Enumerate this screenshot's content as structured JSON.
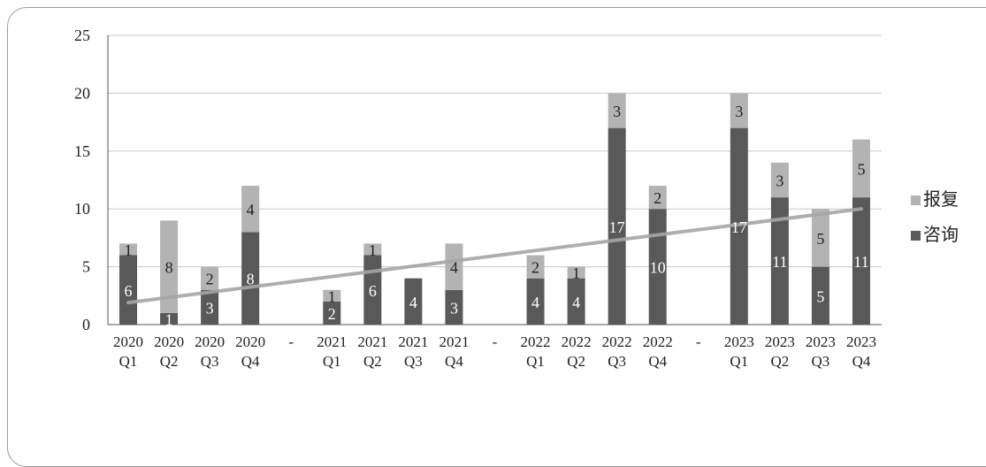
{
  "chart_data": {
    "type": "bar",
    "stacked": true,
    "categories": [
      [
        "2020",
        "Q1"
      ],
      [
        "2020",
        "Q2"
      ],
      [
        "2020",
        "Q3"
      ],
      [
        "2020",
        "Q4"
      ],
      [
        "-",
        ""
      ],
      [
        "2021",
        "Q1"
      ],
      [
        "2021",
        "Q2"
      ],
      [
        "2021",
        "Q3"
      ],
      [
        "2021",
        "Q4"
      ],
      [
        "-",
        ""
      ],
      [
        "2022",
        "Q1"
      ],
      [
        "2022",
        "Q2"
      ],
      [
        "2022",
        "Q3"
      ],
      [
        "2022",
        "Q4"
      ],
      [
        "-",
        ""
      ],
      [
        "2023",
        "Q1"
      ],
      [
        "2023",
        "Q2"
      ],
      [
        "2023",
        "Q3"
      ],
      [
        "2023",
        "Q4"
      ]
    ],
    "series": [
      {
        "name": "咨询",
        "color": "#595959",
        "label_color": "#ffffff",
        "values": [
          6,
          1,
          3,
          8,
          null,
          2,
          6,
          4,
          3,
          null,
          4,
          4,
          17,
          10,
          null,
          17,
          11,
          5,
          11
        ]
      },
      {
        "name": "报复",
        "color": "#b3b3b3",
        "label_color": "#222222",
        "values": [
          1,
          8,
          2,
          4,
          null,
          1,
          1,
          null,
          4,
          null,
          2,
          1,
          3,
          2,
          null,
          3,
          3,
          5,
          5
        ]
      }
    ],
    "trendline": {
      "type": "linear",
      "color": "#a6a6a6",
      "from": 1.9,
      "to": 10.0
    },
    "y_ticks": [
      0,
      5,
      10,
      15,
      20,
      25
    ],
    "ylim": [
      0,
      25
    ],
    "grid": true,
    "legend": {
      "position": "right",
      "order": [
        "报复",
        "咨询"
      ]
    },
    "title": "",
    "xlabel": "",
    "ylabel": ""
  }
}
